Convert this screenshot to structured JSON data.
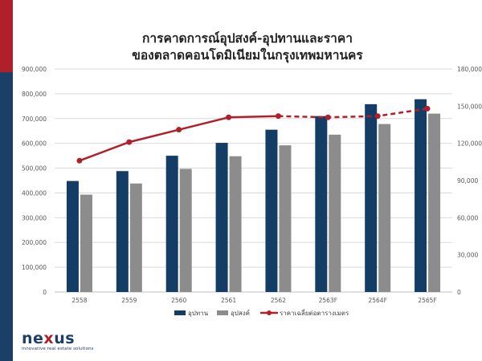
{
  "chart_data": {
    "type": "bar",
    "title_lines": [
      "การคาดการณ์อุปสงค์-อุปทานและราคา",
      "ของตลาดคอนโดมิเนียมในกรุงเทพมหานคร"
    ],
    "categories": [
      "2558",
      "2559",
      "2560",
      "2561",
      "2562",
      "2563F",
      "2564F",
      "2565F"
    ],
    "series": [
      {
        "name": "อุปทาน",
        "axis": "left",
        "color": "#143d66",
        "values": [
          448000,
          488000,
          550000,
          602000,
          655000,
          710000,
          758000,
          778000
        ]
      },
      {
        "name": "อุปสงค์",
        "axis": "left",
        "color": "#8c8c8c",
        "values": [
          393000,
          438000,
          497000,
          548000,
          592000,
          635000,
          678000,
          720000
        ]
      }
    ],
    "line": {
      "name": "ราคาเฉลี่ยต่อตารางเมตร",
      "axis": "right",
      "color": "#b0202b",
      "dashed_from": "2562",
      "values": [
        106000,
        121000,
        131000,
        141000,
        142000,
        141000,
        142000,
        148000
      ]
    },
    "y_left": {
      "min": 0,
      "max": 900000,
      "step": 100000,
      "tick_labels": [
        "0",
        "100,000",
        "200,000",
        "300,000",
        "400,000",
        "500,000",
        "600,000",
        "700,000",
        "800,000",
        "900,000"
      ]
    },
    "y_right": {
      "min": 0,
      "max": 180000,
      "step": 30000,
      "tick_labels": [
        "0",
        "30,000",
        "60,000",
        "90,000",
        "120,000",
        "150,000",
        "180,000"
      ]
    },
    "grid": true,
    "legend": "bottom-center"
  },
  "logo": {
    "word_pre": "ne",
    "word_x": "x",
    "word_post": "us",
    "tagline": "innovative real estate solutions"
  },
  "colors": {
    "accent_red": "#b0202b",
    "accent_blue": "#1b3f66"
  }
}
